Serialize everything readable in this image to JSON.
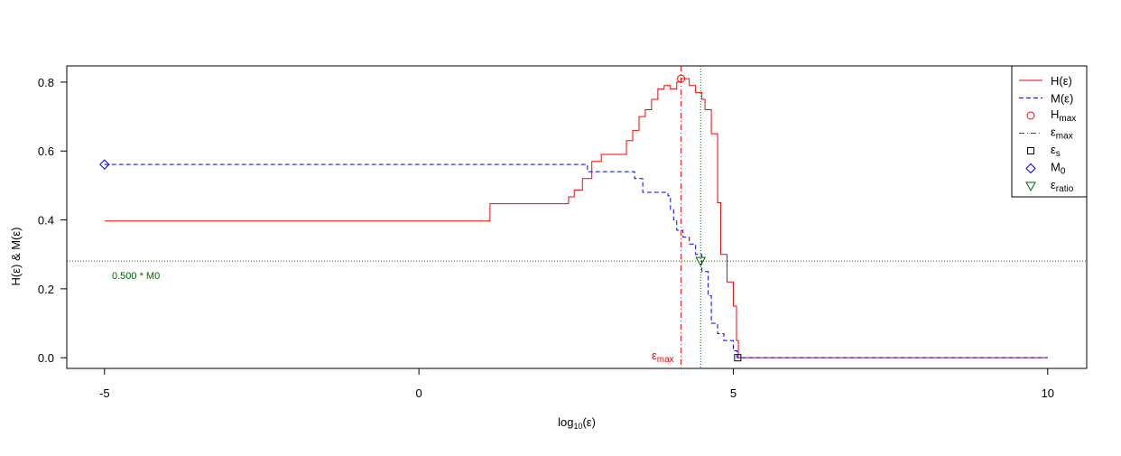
{
  "chart_data": {
    "type": "line",
    "x_label": {
      "text": "log",
      "sub": "10",
      "tail": "(ε)"
    },
    "y_label": "H(ε)  &  M(ε)",
    "xlim": [
      -5.6,
      10.62
    ],
    "ylim": [
      -0.031,
      0.847
    ],
    "xticks": [
      -5,
      0,
      5,
      10
    ],
    "yticks": [
      {
        "value": 0,
        "label": "0.0"
      },
      {
        "value": 0.2,
        "label": "0.2"
      },
      {
        "value": 0.4,
        "label": "0.4"
      },
      {
        "value": 0.6,
        "label": "0.6"
      },
      {
        "value": 0.8,
        "label": "0.8"
      }
    ],
    "series": [
      {
        "name": "H(ε)",
        "color": "#ff0000",
        "dash": "solid",
        "x": [
          -5,
          1.13,
          2.38,
          2.47,
          2.6,
          2.75,
          2.9,
          3.3,
          3.4,
          3.5,
          3.6,
          3.7,
          3.8,
          3.9,
          4.0,
          4.1,
          4.17,
          4.3,
          4.4,
          4.5,
          4.55,
          4.65,
          4.75,
          4.8,
          4.9,
          5.0,
          5.05,
          5.08,
          10
        ],
        "values": [
          0.397,
          0.447,
          0.467,
          0.487,
          0.52,
          0.57,
          0.59,
          0.63,
          0.66,
          0.7,
          0.72,
          0.75,
          0.78,
          0.79,
          0.78,
          0.8,
          0.81,
          0.79,
          0.77,
          0.75,
          0.72,
          0.65,
          0.45,
          0.3,
          0.22,
          0.15,
          0.05,
          0.0,
          0.0
        ]
      },
      {
        "name": "M(ε)",
        "color": "#0000ff",
        "dash": "dashed",
        "x": [
          -5,
          2.68,
          3.43,
          3.56,
          3.96,
          4.0,
          4.05,
          4.1,
          4.2,
          4.3,
          4.4,
          4.5,
          4.6,
          4.65,
          4.75,
          4.85,
          5.0,
          5.06,
          10
        ],
        "values": [
          0.561,
          0.54,
          0.52,
          0.48,
          0.47,
          0.43,
          0.4,
          0.37,
          0.35,
          0.33,
          0.3,
          0.25,
          0.18,
          0.1,
          0.07,
          0.05,
          0.02,
          0.0,
          0.0
        ]
      }
    ],
    "points": [
      {
        "base": "H",
        "sub": "max",
        "x": 4.17,
        "y": 0.81,
        "shape": "circle",
        "color": "#ff0000"
      },
      {
        "base": "ε",
        "sub": "s",
        "x": 5.07,
        "y": 0,
        "shape": "square",
        "color": "#000000"
      },
      {
        "base": "M",
        "sub": "0",
        "x": -5,
        "y": 0.561,
        "shape": "diamond",
        "color": "#0000ff"
      },
      {
        "base": "ε",
        "sub": "ratio",
        "x": 4.48,
        "y": 0.2805,
        "shape": "triangle",
        "color": "#006400"
      }
    ],
    "vline": {
      "base": "ε",
      "sub": "max",
      "x": 4.17,
      "color": "#ff0000"
    },
    "hline": {
      "y": 0.2805,
      "label": "0.500 * M0",
      "color": "#006400"
    }
  }
}
